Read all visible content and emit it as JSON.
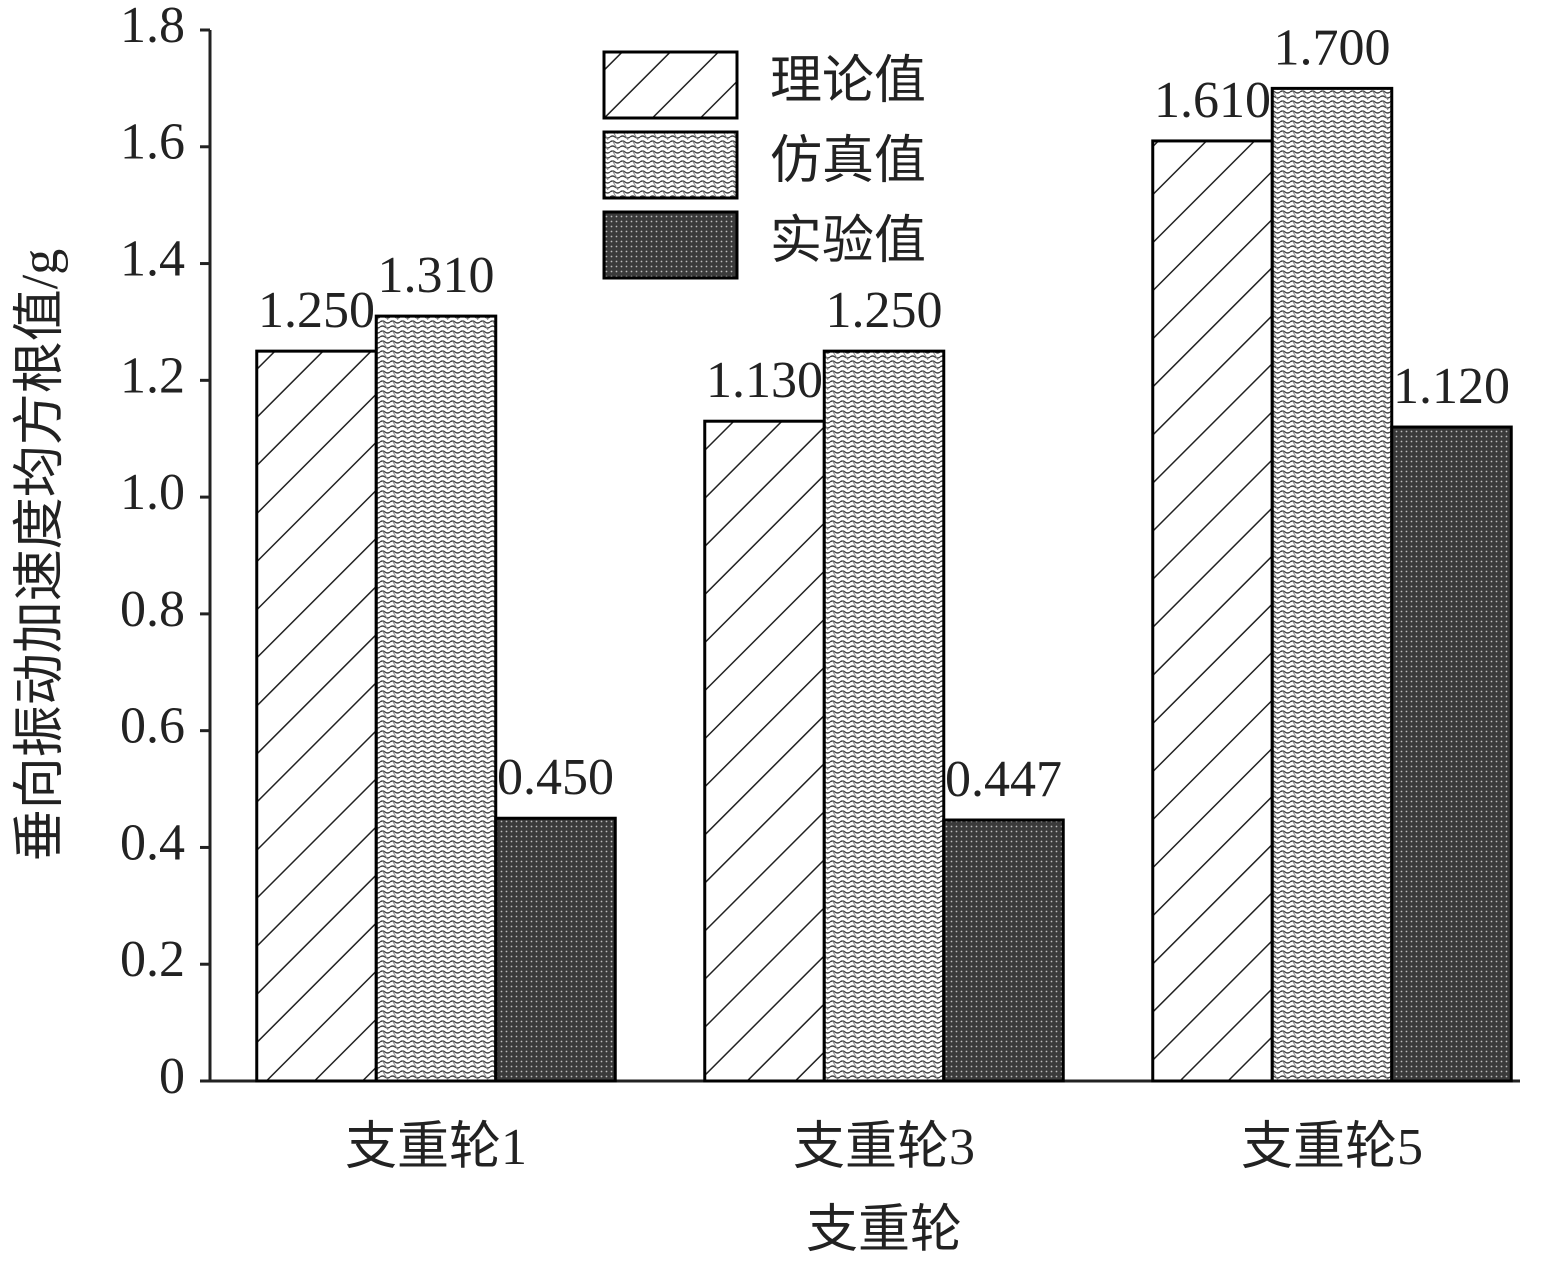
{
  "chart_data": {
    "type": "bar",
    "x_label": "支重轮",
    "y_label": "垂向振动加速度均方根值/g",
    "categories": [
      "支重轮1",
      "支重轮3",
      "支重轮5"
    ],
    "series": [
      {
        "name": "理论值",
        "color": "#000000",
        "pattern": "hatch",
        "values": [
          1.25,
          1.13,
          1.61
        ],
        "value_labels": [
          "1.250",
          "1.130",
          "1.610"
        ]
      },
      {
        "name": "仿真值",
        "color": "#000000",
        "pattern": "wave",
        "values": [
          1.31,
          1.25,
          1.7
        ],
        "value_labels": [
          "1.310",
          "1.250",
          "1.700"
        ]
      },
      {
        "name": "实验值",
        "color": "#000000",
        "pattern": "dots",
        "values": [
          0.45,
          0.447,
          1.12
        ],
        "value_labels": [
          "0.450",
          "0.447",
          "1.120"
        ]
      }
    ],
    "ylim": [
      0,
      1.8
    ],
    "yticks": [
      0,
      0.2,
      0.4,
      0.6,
      0.8,
      {
        "value": 1,
        "label": "1.0"
      },
      1.2,
      1.4,
      1.6,
      1.8
    ],
    "grid": false,
    "legend": "top"
  }
}
